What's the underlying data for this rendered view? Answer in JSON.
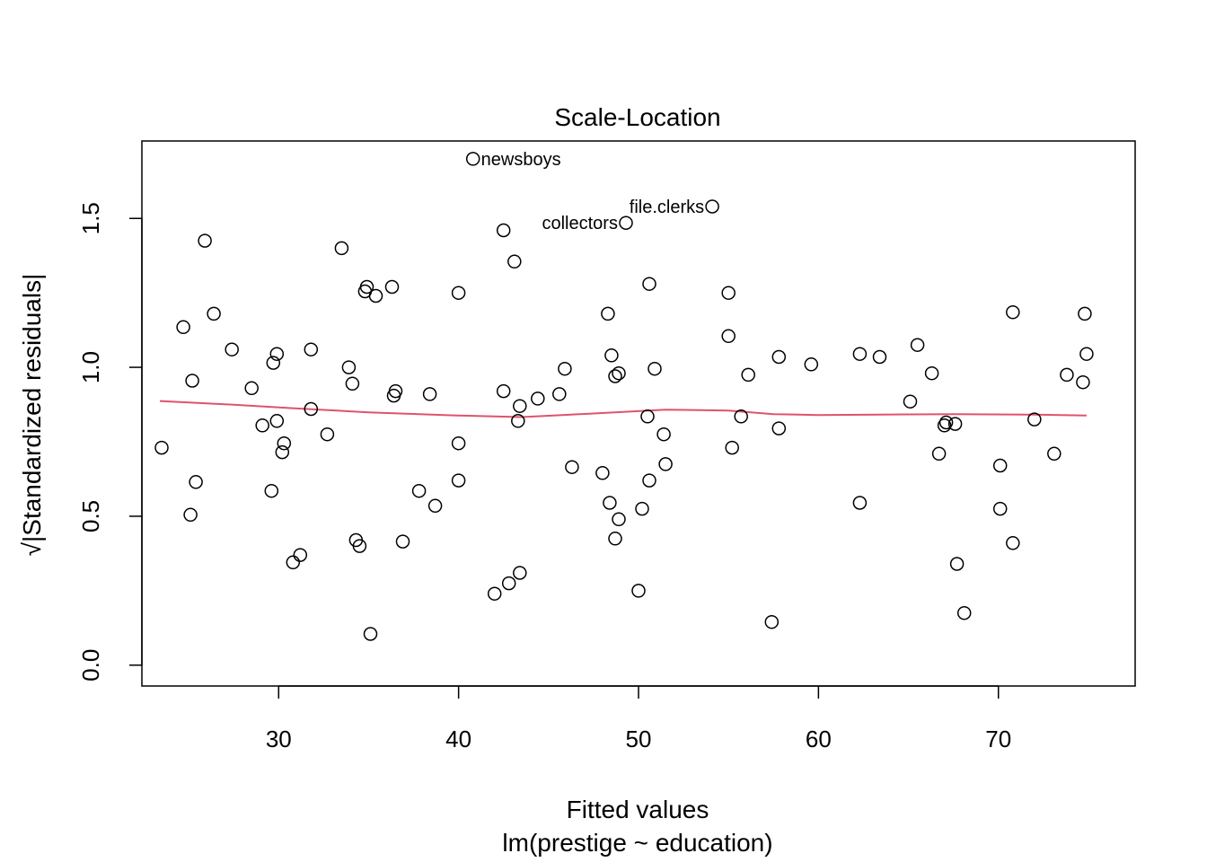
{
  "chart_data": {
    "type": "scatter",
    "title": "Scale-Location",
    "xlabel": "Fitted values",
    "xsublabel": "lm(prestige ~ education)",
    "ylabel": "√|Standardized residuals|",
    "xlim": [
      22.4,
      77.6
    ],
    "ylim": [
      -0.07,
      1.76
    ],
    "x_ticks": [
      30,
      40,
      50,
      60,
      70
    ],
    "x_tick_labels": [
      "30",
      "40",
      "50",
      "60",
      "70"
    ],
    "y_ticks": [
      0.0,
      0.5,
      1.0,
      1.5
    ],
    "y_tick_labels": [
      "0.0",
      "0.5",
      "1.0",
      "1.5"
    ],
    "grid": false,
    "point_color": "#000000",
    "smooth_color": "#DF536B",
    "points": [
      [
        23.5,
        0.73
      ],
      [
        24.7,
        1.135
      ],
      [
        25.1,
        0.505
      ],
      [
        25.2,
        0.955
      ],
      [
        25.4,
        0.615
      ],
      [
        25.9,
        1.425
      ],
      [
        26.4,
        1.18
      ],
      [
        27.4,
        1.06
      ],
      [
        28.5,
        0.93
      ],
      [
        29.1,
        0.805
      ],
      [
        29.6,
        0.585
      ],
      [
        29.7,
        1.015
      ],
      [
        29.9,
        0.82
      ],
      [
        29.9,
        1.045
      ],
      [
        30.2,
        0.715
      ],
      [
        30.3,
        0.745
      ],
      [
        30.8,
        0.345
      ],
      [
        31.2,
        0.37
      ],
      [
        31.8,
        1.06
      ],
      [
        31.8,
        0.86
      ],
      [
        32.7,
        0.775
      ],
      [
        33.5,
        1.4
      ],
      [
        33.9,
        1.0
      ],
      [
        34.1,
        0.945
      ],
      [
        34.3,
        0.42
      ],
      [
        34.5,
        0.4
      ],
      [
        34.8,
        1.255
      ],
      [
        34.9,
        1.27
      ],
      [
        35.1,
        0.105
      ],
      [
        35.4,
        1.24
      ],
      [
        36.3,
        1.27
      ],
      [
        36.4,
        0.905
      ],
      [
        36.5,
        0.92
      ],
      [
        36.9,
        0.415
      ],
      [
        37.8,
        0.585
      ],
      [
        38.4,
        0.91
      ],
      [
        38.7,
        0.535
      ],
      [
        40.0,
        1.25
      ],
      [
        40.0,
        0.745
      ],
      [
        40.0,
        0.62
      ],
      [
        40.8,
        1.7
      ],
      [
        42.0,
        0.24
      ],
      [
        42.5,
        0.92
      ],
      [
        42.5,
        1.46
      ],
      [
        42.8,
        0.275
      ],
      [
        43.1,
        1.355
      ],
      [
        43.3,
        0.82
      ],
      [
        43.4,
        0.87
      ],
      [
        43.4,
        0.31
      ],
      [
        44.4,
        0.895
      ],
      [
        45.6,
        0.91
      ],
      [
        45.9,
        0.995
      ],
      [
        46.3,
        0.665
      ],
      [
        48.0,
        0.645
      ],
      [
        48.3,
        1.18
      ],
      [
        48.4,
        0.545
      ],
      [
        48.5,
        1.04
      ],
      [
        48.7,
        0.425
      ],
      [
        48.7,
        0.97
      ],
      [
        48.9,
        0.49
      ],
      [
        48.9,
        0.98
      ],
      [
        49.3,
        1.485
      ],
      [
        50.0,
        0.25
      ],
      [
        50.2,
        0.525
      ],
      [
        50.5,
        0.835
      ],
      [
        50.6,
        0.62
      ],
      [
        50.6,
        1.28
      ],
      [
        50.9,
        0.995
      ],
      [
        51.4,
        0.775
      ],
      [
        51.5,
        0.675
      ],
      [
        54.1,
        1.54
      ],
      [
        55.0,
        1.25
      ],
      [
        55.0,
        1.105
      ],
      [
        55.2,
        0.73
      ],
      [
        55.7,
        0.835
      ],
      [
        56.1,
        0.975
      ],
      [
        57.4,
        0.145
      ],
      [
        57.8,
        1.035
      ],
      [
        57.8,
        0.795
      ],
      [
        59.6,
        1.01
      ],
      [
        62.3,
        0.545
      ],
      [
        62.3,
        1.045
      ],
      [
        63.4,
        1.035
      ],
      [
        65.1,
        0.885
      ],
      [
        65.5,
        1.075
      ],
      [
        66.3,
        0.98
      ],
      [
        66.7,
        0.71
      ],
      [
        67.0,
        0.805
      ],
      [
        67.1,
        0.815
      ],
      [
        67.6,
        0.81
      ],
      [
        67.7,
        0.34
      ],
      [
        68.1,
        0.175
      ],
      [
        70.1,
        0.67
      ],
      [
        70.1,
        0.525
      ],
      [
        70.8,
        0.41
      ],
      [
        70.8,
        1.185
      ],
      [
        72.0,
        0.825
      ],
      [
        73.1,
        0.71
      ],
      [
        73.8,
        0.975
      ],
      [
        74.7,
        0.95
      ],
      [
        74.8,
        1.18
      ],
      [
        74.9,
        1.045
      ]
    ],
    "smooth_line": [
      [
        23.4,
        0.887
      ],
      [
        27.0,
        0.876
      ],
      [
        31.0,
        0.862
      ],
      [
        35.0,
        0.849
      ],
      [
        40.0,
        0.838
      ],
      [
        43.5,
        0.833
      ],
      [
        47.5,
        0.845
      ],
      [
        51.5,
        0.858
      ],
      [
        55.0,
        0.855
      ],
      [
        57.5,
        0.843
      ],
      [
        60.0,
        0.84
      ],
      [
        65.0,
        0.842
      ],
      [
        67.5,
        0.843
      ],
      [
        72.0,
        0.841
      ],
      [
        74.9,
        0.838
      ]
    ],
    "annotations": [
      {
        "label": "newsboys",
        "x": 40.8,
        "y": 1.7,
        "side": "right"
      },
      {
        "label": "collectors",
        "x": 49.3,
        "y": 1.485,
        "side": "left"
      },
      {
        "label": "file.clerks",
        "x": 54.1,
        "y": 1.54,
        "side": "left"
      }
    ]
  }
}
